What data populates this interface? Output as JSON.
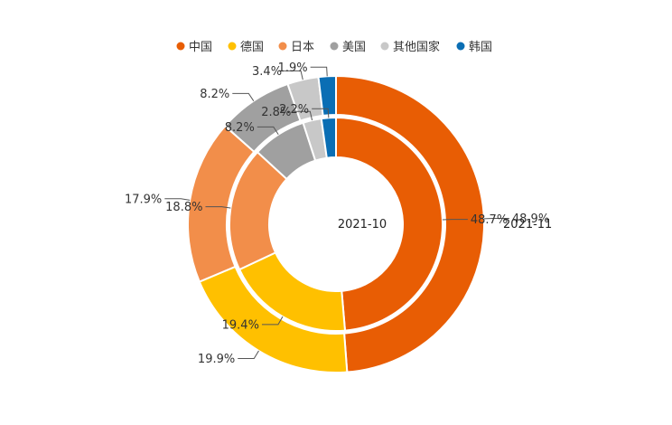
{
  "chart_data": {
    "type": "pie",
    "style": "nested-donut",
    "legend_position": "top-center",
    "categories": [
      "中国",
      "德国",
      "日本",
      "美国",
      "其他国家",
      "韩国"
    ],
    "colors": [
      "#E85D04",
      "#FFC000",
      "#F28E4A",
      "#A0A0A0",
      "#C8C8C8",
      "#0A6EB4"
    ],
    "series": [
      {
        "name": "2021-10",
        "ring": "inner",
        "values": [
          48.7,
          19.4,
          18.8,
          8.2,
          2.8,
          2.2
        ],
        "labels": [
          "48.7%",
          "19.4%",
          "18.8%",
          "8.2%",
          "2.8%",
          "2.2%"
        ]
      },
      {
        "name": "2021-11",
        "ring": "outer",
        "values": [
          48.9,
          19.9,
          17.9,
          8.2,
          3.4,
          1.9
        ],
        "labels": [
          "48.9%",
          "19.9%",
          "17.9%",
          "8.2%",
          "3.4%",
          "1.9%"
        ]
      }
    ]
  }
}
